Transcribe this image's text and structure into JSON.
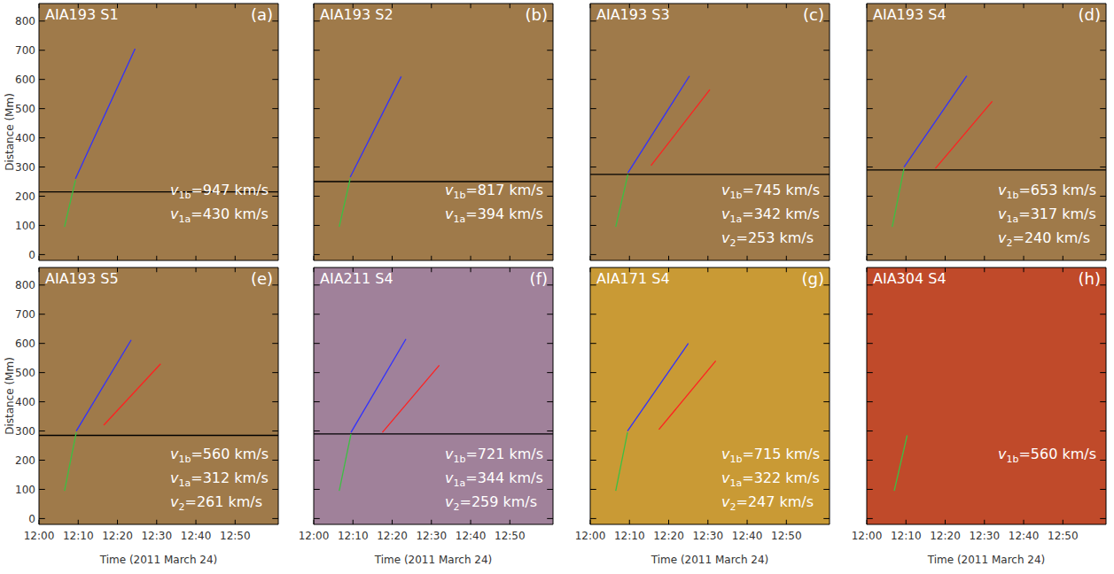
{
  "chart_data": [
    {
      "type": "line",
      "title": "AIA193 S1",
      "panel": "(a)",
      "xlabel": "Time (2011 March 24)",
      "ylabel": "Distance (Mm)",
      "xlim": [
        0,
        61
      ],
      "ylim": [
        -20,
        860
      ],
      "xticks": [
        {
          "value": 0,
          "label": "12:00"
        },
        {
          "value": 10,
          "label": "12:10"
        },
        {
          "value": 20,
          "label": "12:20"
        },
        {
          "value": 30,
          "label": "12:30"
        },
        {
          "value": 40,
          "label": "12:40"
        },
        {
          "value": 50,
          "label": "12:50"
        }
      ],
      "yticks": [
        0,
        100,
        200,
        300,
        400,
        500,
        600,
        700,
        800
      ],
      "tick_labels": "y",
      "color": "#9f7a4a",
      "series": [
        {
          "color": "#000000",
          "x": [
            0,
            61
          ],
          "values": [
            215,
            215
          ]
        },
        {
          "color": "#3cc043",
          "x": [
            6.5,
            9.3
          ],
          "values": [
            95,
            255
          ]
        },
        {
          "color": "#3030ff",
          "x": [
            9.3,
            24.5
          ],
          "values": [
            260,
            705
          ]
        }
      ],
      "annotations": [
        {
          "text": "v",
          "sub": "1b",
          "rest": "=947 km/s"
        },
        {
          "text": "v",
          "sub": "1a",
          "rest": "=430 km/s"
        }
      ]
    },
    {
      "type": "line",
      "title": "AIA193 S2",
      "panel": "(b)",
      "xlabel": "Time (2011 March 24)",
      "ylabel": "Distance (Mm)",
      "xlim": [
        0,
        61
      ],
      "ylim": [
        -20,
        860
      ],
      "xticks": [
        {
          "value": 0,
          "label": "12:00"
        },
        {
          "value": 10,
          "label": "12:10"
        },
        {
          "value": 20,
          "label": "12:20"
        },
        {
          "value": 30,
          "label": "12:30"
        },
        {
          "value": 40,
          "label": "12:40"
        },
        {
          "value": 50,
          "label": "12:50"
        }
      ],
      "yticks": [
        0,
        100,
        200,
        300,
        400,
        500,
        600,
        700,
        800
      ],
      "tick_labels": false,
      "color": "#9f7a4a",
      "series": [
        {
          "color": "#000000",
          "x": [
            0,
            61
          ],
          "values": [
            250,
            250
          ]
        },
        {
          "color": "#3cc043",
          "x": [
            6.5,
            9.3
          ],
          "values": [
            95,
            260
          ]
        },
        {
          "color": "#3030ff",
          "x": [
            9.3,
            22.3
          ],
          "values": [
            265,
            610
          ]
        }
      ],
      "annotations": [
        {
          "text": "v",
          "sub": "1b",
          "rest": "=817 km/s"
        },
        {
          "text": "v",
          "sub": "1a",
          "rest": "=394 km/s"
        }
      ]
    },
    {
      "type": "line",
      "title": "AIA193 S3",
      "panel": "(c)",
      "xlabel": "Time (2011 March 24)",
      "ylabel": "Distance (Mm)",
      "xlim": [
        0,
        61
      ],
      "ylim": [
        -20,
        860
      ],
      "xticks": [
        {
          "value": 0,
          "label": "12:00"
        },
        {
          "value": 10,
          "label": "12:10"
        },
        {
          "value": 20,
          "label": "12:20"
        },
        {
          "value": 30,
          "label": "12:30"
        },
        {
          "value": 40,
          "label": "12:40"
        },
        {
          "value": 50,
          "label": "12:50"
        }
      ],
      "yticks": [
        0,
        100,
        200,
        300,
        400,
        500,
        600,
        700,
        800
      ],
      "tick_labels": false,
      "color": "#9f7a4a",
      "series": [
        {
          "color": "#000000",
          "x": [
            0,
            61
          ],
          "values": [
            275,
            275
          ]
        },
        {
          "color": "#3cc043",
          "x": [
            6.5,
            9.6
          ],
          "values": [
            95,
            275
          ]
        },
        {
          "color": "#3030ff",
          "x": [
            9.6,
            25.3
          ],
          "values": [
            280,
            612
          ]
        },
        {
          "color": "#ff2020",
          "x": [
            15.5,
            30.5
          ],
          "values": [
            305,
            565
          ]
        }
      ],
      "annotations": [
        {
          "text": "v",
          "sub": "1b",
          "rest": "=745 km/s"
        },
        {
          "text": "v",
          "sub": "1a",
          "rest": "=342 km/s"
        },
        {
          "text": "v",
          "sub": "2",
          "rest": "=253 km/s"
        }
      ]
    },
    {
      "type": "line",
      "title": "AIA193 S4",
      "panel": "(d)",
      "xlabel": "Time (2011 March 24)",
      "ylabel": "Distance (Mm)",
      "xlim": [
        0,
        61
      ],
      "ylim": [
        -20,
        860
      ],
      "xticks": [
        {
          "value": 0,
          "label": "12:00"
        },
        {
          "value": 10,
          "label": "12:10"
        },
        {
          "value": 20,
          "label": "12:20"
        },
        {
          "value": 30,
          "label": "12:30"
        },
        {
          "value": 40,
          "label": "12:40"
        },
        {
          "value": 50,
          "label": "12:50"
        }
      ],
      "yticks": [
        0,
        100,
        200,
        300,
        400,
        500,
        600,
        700,
        800
      ],
      "tick_labels": false,
      "color": "#9f7a4a",
      "series": [
        {
          "color": "#000000",
          "x": [
            0,
            61
          ],
          "values": [
            290,
            290
          ]
        },
        {
          "color": "#3cc043",
          "x": [
            6.5,
            9.5
          ],
          "values": [
            95,
            295
          ]
        },
        {
          "color": "#3030ff",
          "x": [
            9.5,
            25.5
          ],
          "values": [
            300,
            612
          ]
        },
        {
          "color": "#ff2020",
          "x": [
            17.5,
            32
          ],
          "values": [
            295,
            525
          ]
        }
      ],
      "annotations": [
        {
          "text": "v",
          "sub": "1b",
          "rest": "=653 km/s"
        },
        {
          "text": "v",
          "sub": "1a",
          "rest": "=317 km/s"
        },
        {
          "text": "v",
          "sub": "2",
          "rest": "=240 km/s"
        }
      ]
    },
    {
      "type": "line",
      "title": "AIA193 S5",
      "panel": "(e)",
      "xlabel": "Time (2011 March 24)",
      "ylabel": "Distance (Mm)",
      "xlim": [
        0,
        61
      ],
      "ylim": [
        -20,
        860
      ],
      "xticks": [
        {
          "value": 0,
          "label": "12:00"
        },
        {
          "value": 10,
          "label": "12:10"
        },
        {
          "value": 20,
          "label": "12:20"
        },
        {
          "value": 30,
          "label": "12:30"
        },
        {
          "value": 40,
          "label": "12:40"
        },
        {
          "value": 50,
          "label": "12:50"
        }
      ],
      "yticks": [
        0,
        100,
        200,
        300,
        400,
        500,
        600,
        700,
        800
      ],
      "tick_labels": true,
      "color": "#9f7a4a",
      "series": [
        {
          "color": "#000000",
          "x": [
            0,
            61
          ],
          "values": [
            285,
            285
          ]
        },
        {
          "color": "#3cc043",
          "x": [
            6.5,
            9.5
          ],
          "values": [
            95,
            295
          ]
        },
        {
          "color": "#3030ff",
          "x": [
            9.5,
            23.5
          ],
          "values": [
            300,
            612
          ]
        },
        {
          "color": "#ff2020",
          "x": [
            16.5,
            31
          ],
          "values": [
            320,
            530
          ]
        }
      ],
      "annotations": [
        {
          "text": "v",
          "sub": "1b",
          "rest": "=560 km/s"
        },
        {
          "text": "v",
          "sub": "1a",
          "rest": "=312 km/s"
        },
        {
          "text": "v",
          "sub": "2",
          "rest": "=261 km/s"
        }
      ]
    },
    {
      "type": "line",
      "title": "AIA211 S4",
      "panel": "(f)",
      "xlabel": "Time (2011 March 24)",
      "ylabel": "Distance (Mm)",
      "xlim": [
        0,
        61
      ],
      "ylim": [
        -20,
        860
      ],
      "xticks": [
        {
          "value": 0,
          "label": "12:00"
        },
        {
          "value": 10,
          "label": "12:10"
        },
        {
          "value": 20,
          "label": "12:20"
        },
        {
          "value": 30,
          "label": "12:30"
        },
        {
          "value": 40,
          "label": "12:40"
        },
        {
          "value": 50,
          "label": "12:50"
        }
      ],
      "yticks": [
        0,
        100,
        200,
        300,
        400,
        500,
        600,
        700,
        800
      ],
      "tick_labels": "x",
      "color": "#a0819a",
      "series": [
        {
          "color": "#000000",
          "x": [
            0,
            61
          ],
          "values": [
            290,
            290
          ]
        },
        {
          "color": "#3cc043",
          "x": [
            6.5,
            9.5
          ],
          "values": [
            95,
            290
          ]
        },
        {
          "color": "#3030ff",
          "x": [
            9.5,
            23.5
          ],
          "values": [
            295,
            615
          ]
        },
        {
          "color": "#ff2020",
          "x": [
            17.5,
            32
          ],
          "values": [
            295,
            525
          ]
        }
      ],
      "annotations": [
        {
          "text": "v",
          "sub": "1b",
          "rest": "=721 km/s"
        },
        {
          "text": "v",
          "sub": "1a",
          "rest": "=344 km/s"
        },
        {
          "text": "v",
          "sub": "2",
          "rest": "=259 km/s"
        }
      ]
    },
    {
      "type": "line",
      "title": "AIA171 S4",
      "panel": "(g)",
      "xlabel": "Time (2011 March 24)",
      "ylabel": "Distance (Mm)",
      "xlim": [
        0,
        61
      ],
      "ylim": [
        -20,
        860
      ],
      "xticks": [
        {
          "value": 0,
          "label": "12:00"
        },
        {
          "value": 10,
          "label": "12:10"
        },
        {
          "value": 20,
          "label": "12:20"
        },
        {
          "value": 30,
          "label": "12:30"
        },
        {
          "value": 40,
          "label": "12:40"
        },
        {
          "value": 50,
          "label": "12:50"
        }
      ],
      "yticks": [
        0,
        100,
        200,
        300,
        400,
        500,
        600,
        700,
        800
      ],
      "tick_labels": "x",
      "color": "#c99a35",
      "series": [
        {
          "color": "#3cc043",
          "x": [
            6.5,
            9.5
          ],
          "values": [
            95,
            295
          ]
        },
        {
          "color": "#3030ff",
          "x": [
            9.5,
            25
          ],
          "values": [
            300,
            600
          ]
        },
        {
          "color": "#ff2020",
          "x": [
            17.5,
            32
          ],
          "values": [
            305,
            540
          ]
        }
      ],
      "annotations": [
        {
          "text": "v",
          "sub": "1b",
          "rest": "=715 km/s"
        },
        {
          "text": "v",
          "sub": "1a",
          "rest": "=322 km/s"
        },
        {
          "text": "v",
          "sub": "2",
          "rest": "=247 km/s"
        }
      ]
    },
    {
      "type": "line",
      "title": "AIA304 S4",
      "panel": "(h)",
      "xlabel": "Time (2011 March 24)",
      "ylabel": "Distance (Mm)",
      "xlim": [
        0,
        61
      ],
      "ylim": [
        -20,
        860
      ],
      "xticks": [
        {
          "value": 0,
          "label": "12:00"
        },
        {
          "value": 10,
          "label": "12:10"
        },
        {
          "value": 20,
          "label": "12:20"
        },
        {
          "value": 30,
          "label": "12:30"
        },
        {
          "value": 40,
          "label": "12:40"
        },
        {
          "value": 50,
          "label": "12:50"
        }
      ],
      "yticks": [
        0,
        100,
        200,
        300,
        400,
        500,
        600,
        700,
        800
      ],
      "tick_labels": "x",
      "color": "#c04a2a",
      "series": [
        {
          "color": "#3cc043",
          "x": [
            7,
            10.3
          ],
          "values": [
            95,
            285
          ]
        }
      ],
      "annotations": [
        {
          "text": "v",
          "sub": "1b",
          "rest": "=560 km/s"
        }
      ]
    }
  ]
}
